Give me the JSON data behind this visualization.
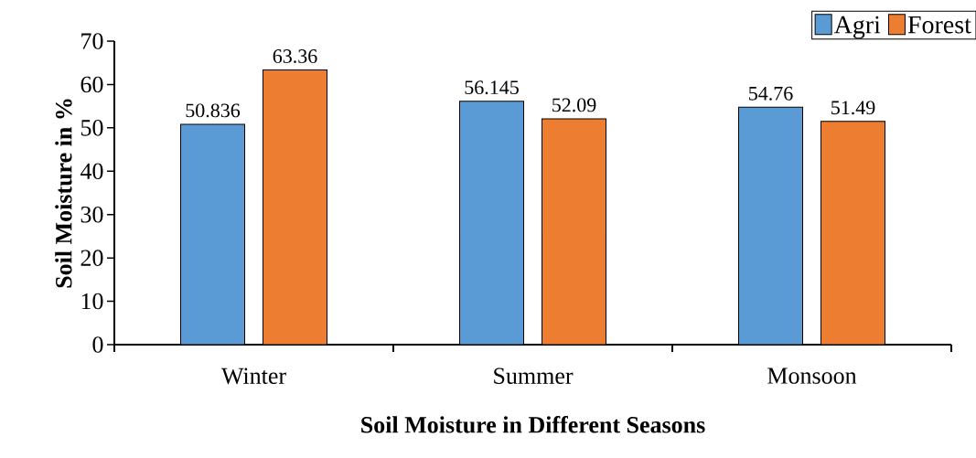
{
  "chart_data": {
    "type": "bar",
    "xlabel": "Soil Moisture in Different Seasons",
    "ylabel": "Soil Moisture in %",
    "categories": [
      "Winter",
      "Summer",
      "Monsoon"
    ],
    "series": [
      {
        "name": "Agri",
        "color": "#5b9bd5",
        "values": [
          50.836,
          56.145,
          54.76
        ]
      },
      {
        "name": "Forest",
        "color": "#ed7d31",
        "values": [
          63.36,
          52.09,
          51.49
        ]
      }
    ],
    "ylim": [
      0,
      70
    ],
    "yticks": [
      0,
      10,
      20,
      30,
      40,
      50,
      60,
      70
    ],
    "data_labels": true,
    "legend": "top right",
    "grid": false
  }
}
